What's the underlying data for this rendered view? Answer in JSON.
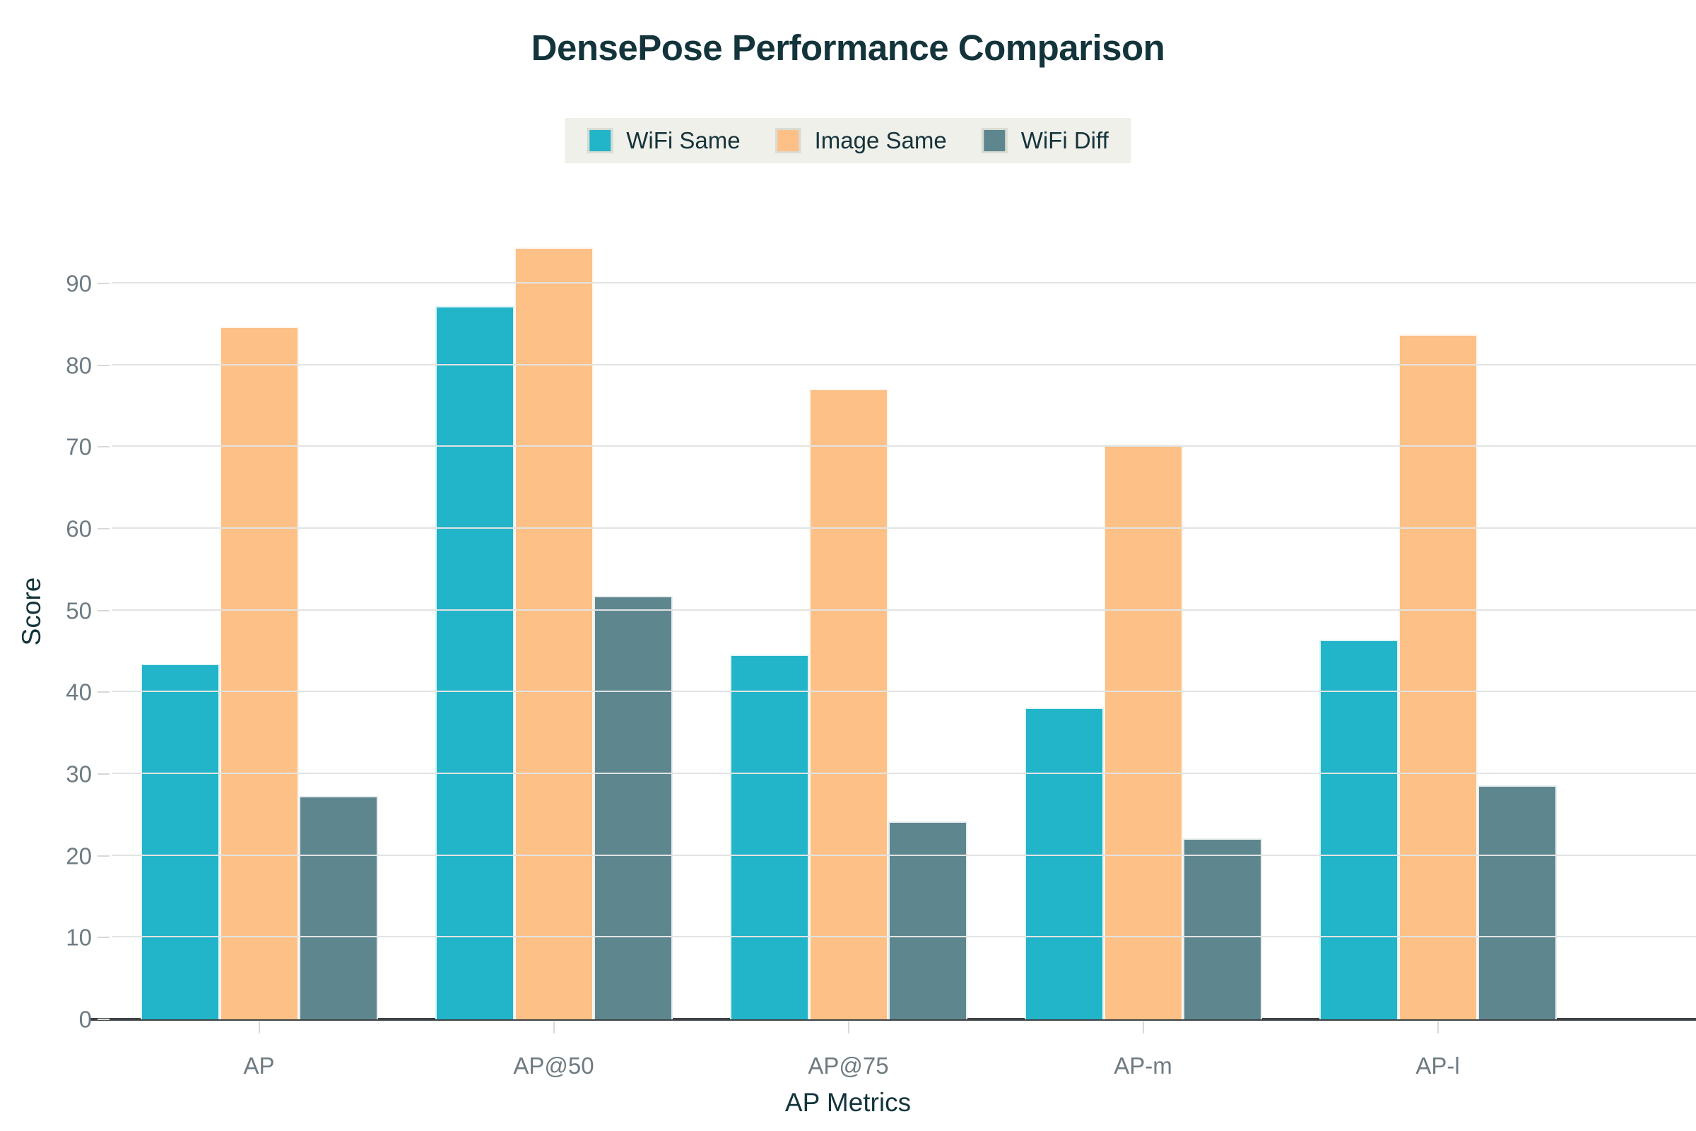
{
  "title": "DensePose Performance Comparison",
  "legend": [
    {
      "label": "WiFi Same",
      "color": "#22b4c8"
    },
    {
      "label": "Image Same",
      "color": "#fdc086"
    },
    {
      "label": "WiFi Diff",
      "color": "#5e868f"
    }
  ],
  "chart_data": {
    "type": "bar",
    "title": "DensePose Performance Comparison",
    "xlabel": "AP Metrics",
    "ylabel": "Score",
    "categories": [
      "AP",
      "AP@50",
      "AP@75",
      "AP-m",
      "AP-l"
    ],
    "series": [
      {
        "name": "WiFi Same",
        "color": "#22b4c8",
        "values": [
          43.5,
          87.2,
          44.6,
          38.1,
          46.4
        ]
      },
      {
        "name": "Image Same",
        "color": "#fdc086",
        "values": [
          84.7,
          94.4,
          77.1,
          70.3,
          83.8
        ]
      },
      {
        "name": "WiFi Diff",
        "color": "#5e868f",
        "values": [
          27.3,
          51.8,
          24.2,
          22.1,
          28.6
        ]
      }
    ],
    "yticks": [
      0,
      10,
      20,
      30,
      40,
      50,
      60,
      70,
      80,
      90
    ],
    "ylim": [
      0,
      102
    ],
    "grid": true,
    "legend_position": "top",
    "colors": {
      "title_text": "#13343b",
      "tick_text": "#6e7b82",
      "gridline": "#e2e3e3",
      "axis_line": "#3d4144",
      "legend_background": "#eff0ea",
      "background": "#ffffff"
    }
  }
}
